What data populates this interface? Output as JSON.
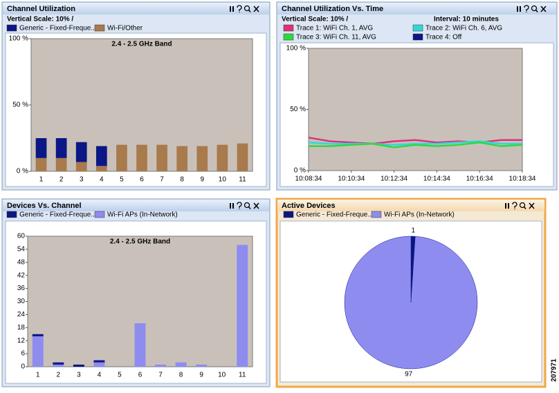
{
  "figure_id": "207971",
  "chart_data": [
    {
      "type": "bar",
      "stacked": true,
      "title": "Channel Utilization",
      "subtitle": "Vertical Scale: 10% /",
      "annotation": "2.4 - 2.5 GHz Band",
      "categories": [
        "1",
        "2",
        "3",
        "4",
        "5",
        "6",
        "7",
        "8",
        "9",
        "10",
        "11"
      ],
      "series": [
        {
          "name": "Generic - Fixed-Freque...",
          "color": "#0b1785",
          "values": [
            15,
            15,
            15,
            15,
            0,
            0,
            0,
            0,
            0,
            0,
            0
          ]
        },
        {
          "name": "Wi-Fi/Other",
          "color": "#a87a4c",
          "values": [
            10,
            10,
            7,
            4,
            20,
            20,
            20,
            19,
            19,
            20,
            21
          ]
        }
      ],
      "ylim": [
        0,
        100
      ],
      "yticks": [
        {
          "value": 0,
          "label": "0 %"
        },
        {
          "value": 50,
          "label": "50 %"
        },
        {
          "value": 100,
          "label": "100 %"
        }
      ],
      "grid": false
    },
    {
      "type": "line",
      "title": "Channel Utilization Vs. Time",
      "subtitle": "Vertical Scale: 10% /",
      "interval": "Interval: 10 minutes",
      "x": [
        "10:08:34",
        null,
        "10:10:34",
        null,
        "10:12:34",
        null,
        "10:14:34",
        null,
        "10:16:34",
        null,
        "10:18:34"
      ],
      "series": [
        {
          "name": "Trace 1: WiFi Ch. 1, AVG",
          "color": "#e0307a",
          "values": [
            27,
            24,
            23,
            22,
            24,
            25,
            23,
            24,
            23,
            25,
            25
          ]
        },
        {
          "name": "Trace 2: WiFi Ch. 6, AVG",
          "color": "#30d8d8",
          "values": [
            23,
            22,
            22,
            22,
            21,
            22,
            22,
            23,
            24,
            22,
            22
          ]
        },
        {
          "name": "Trace 3: WiFi Ch. 11, AVG",
          "color": "#30d840",
          "values": [
            20,
            20,
            21,
            22,
            19,
            21,
            20,
            21,
            23,
            20,
            21
          ]
        },
        {
          "name": "Trace 4: Off",
          "color": "#0b1785",
          "values": [
            null,
            null,
            null,
            null,
            null,
            null,
            null,
            null,
            null,
            null,
            null
          ]
        }
      ],
      "ylim": [
        0,
        100
      ],
      "yticks": [
        {
          "value": 0,
          "label": "0 %"
        },
        {
          "value": 50,
          "label": "50 %"
        },
        {
          "value": 100,
          "label": "100 %"
        }
      ],
      "grid": false
    },
    {
      "type": "bar",
      "stacked": true,
      "title": "Devices Vs. Channel",
      "annotation": "2.4 - 2.5 GHz Band",
      "categories": [
        "1",
        "2",
        "3",
        "4",
        "5",
        "6",
        "7",
        "8",
        "9",
        "10",
        "11"
      ],
      "series": [
        {
          "name": "Generic - Fixed-Freque...",
          "color": "#0b1785",
          "values": [
            1,
            1,
            1,
            1,
            0,
            0,
            0,
            0,
            0,
            0,
            0
          ]
        },
        {
          "name": "Wi-Fi APs (In-Network)",
          "color": "#8f8cf0",
          "values": [
            14,
            1,
            0,
            2,
            0,
            20,
            1,
            2,
            1,
            0,
            56
          ]
        }
      ],
      "ylim": [
        0,
        60
      ],
      "yticks": [
        0,
        6,
        12,
        18,
        24,
        30,
        36,
        42,
        48,
        54,
        60
      ],
      "grid": false
    },
    {
      "type": "pie",
      "title": "Active Devices",
      "categories": [
        "Generic - Fixed-Freque...",
        "Wi-Fi APs (In-Network)"
      ],
      "values": [
        1,
        97
      ],
      "colors": [
        "#0b1785",
        "#8f8cf0"
      ]
    }
  ]
}
